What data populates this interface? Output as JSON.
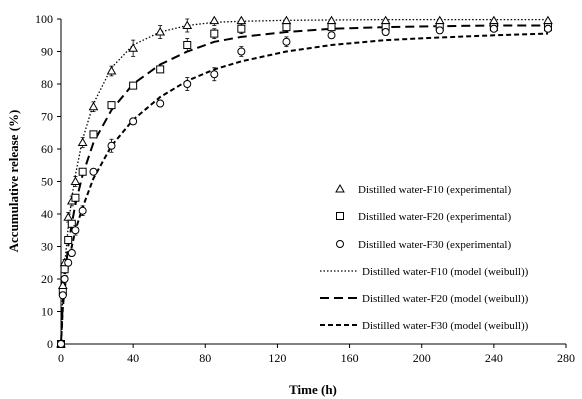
{
  "chart_data": {
    "type": "scatter",
    "xlabel": "Time (h)",
    "ylabel": "Accumulative release (%)",
    "xlim": [
      0,
      280
    ],
    "ylim": [
      0,
      100
    ],
    "x_ticks": [
      0,
      40,
      80,
      120,
      160,
      200,
      240,
      280
    ],
    "y_ticks": [
      0,
      10,
      20,
      30,
      40,
      50,
      60,
      70,
      80,
      90,
      100
    ],
    "grid": false,
    "legend_position": "right",
    "series": [
      {
        "name": "Distilled water-F10 (experimental)",
        "kind": "points",
        "marker": "triangle",
        "x": [
          0,
          1,
          2,
          4,
          6,
          8,
          12,
          18,
          28,
          40,
          55,
          70,
          85,
          100,
          125,
          150,
          180,
          210,
          240,
          270
        ],
        "y": [
          0,
          18,
          25,
          39,
          44,
          50,
          62,
          73,
          84,
          91,
          96,
          98,
          99.5,
          99.5,
          99.5,
          99.5,
          99.5,
          99.5,
          99.5,
          99.5
        ],
        "error": [
          0,
          1,
          1,
          1.5,
          1.5,
          1.5,
          1.5,
          1.5,
          1.5,
          2.5,
          2,
          2,
          1.5,
          1.5,
          1,
          1,
          1,
          1,
          1,
          1
        ]
      },
      {
        "name": "Distilled water-F20 (experimental)",
        "kind": "points",
        "marker": "square",
        "x": [
          0,
          1,
          2,
          4,
          6,
          8,
          12,
          18,
          28,
          40,
          55,
          70,
          85,
          100,
          125,
          150,
          180,
          210,
          240,
          270
        ],
        "y": [
          0,
          16,
          23,
          32,
          37,
          45,
          53,
          64.5,
          73.5,
          79.5,
          84.5,
          92,
          95.5,
          97,
          97.5,
          97.5,
          97.5,
          97.5,
          97.5,
          97.5
        ],
        "error": [
          0,
          1,
          1,
          1,
          1,
          1,
          1,
          1,
          1,
          1,
          1,
          2,
          1.5,
          1.5,
          1,
          1,
          1,
          1,
          1,
          1
        ]
      },
      {
        "name": "Distilled water-F30 (experimental)",
        "kind": "points",
        "marker": "circle",
        "x": [
          0,
          1,
          2,
          4,
          6,
          8,
          12,
          18,
          28,
          40,
          55,
          70,
          85,
          100,
          125,
          150,
          180,
          210,
          240,
          270
        ],
        "y": [
          0,
          15,
          20,
          25,
          28,
          35,
          41,
          53,
          61,
          68.5,
          74,
          80,
          83,
          90,
          93,
          95,
          96,
          96.5,
          97,
          97
        ],
        "error": [
          0,
          1,
          1,
          1,
          1,
          1.5,
          1.5,
          1,
          2,
          1,
          1,
          2,
          2,
          1.5,
          1.5,
          1,
          1,
          1,
          1,
          1
        ]
      },
      {
        "name": "Distilled water-F10 (model (weibull))",
        "kind": "line",
        "dash": "dot",
        "x": [
          0,
          1,
          2,
          4,
          6,
          8,
          12,
          18,
          28,
          40,
          55,
          70,
          85,
          100,
          125,
          150,
          180,
          210,
          240,
          270
        ],
        "y": [
          0,
          16,
          24,
          36,
          45,
          52,
          63,
          74,
          85,
          92,
          96,
          98,
          99,
          99.3,
          99.6,
          99.7,
          99.8,
          99.8,
          99.8,
          99.8
        ]
      },
      {
        "name": "Distilled water-F20 (model (weibull))",
        "kind": "line",
        "dash": "long-dash",
        "x": [
          0,
          1,
          2,
          4,
          6,
          8,
          12,
          18,
          28,
          40,
          55,
          70,
          85,
          100,
          125,
          150,
          180,
          210,
          240,
          270
        ],
        "y": [
          0,
          13,
          20,
          30,
          37,
          43,
          52,
          62,
          72,
          80,
          86,
          90,
          93,
          94.5,
          96,
          97,
          97.5,
          97.8,
          98,
          98
        ]
      },
      {
        "name": "Distilled water-F30 (model (weibull))",
        "kind": "line",
        "dash": "short-dash",
        "x": [
          0,
          1,
          2,
          4,
          6,
          8,
          12,
          18,
          28,
          40,
          55,
          70,
          85,
          100,
          125,
          150,
          180,
          210,
          240,
          270
        ],
        "y": [
          0,
          11,
          17,
          24,
          30,
          35,
          42,
          51,
          61,
          69,
          76,
          81,
          84.5,
          87,
          90,
          92,
          93.5,
          94.3,
          95,
          95.5
        ]
      }
    ]
  }
}
